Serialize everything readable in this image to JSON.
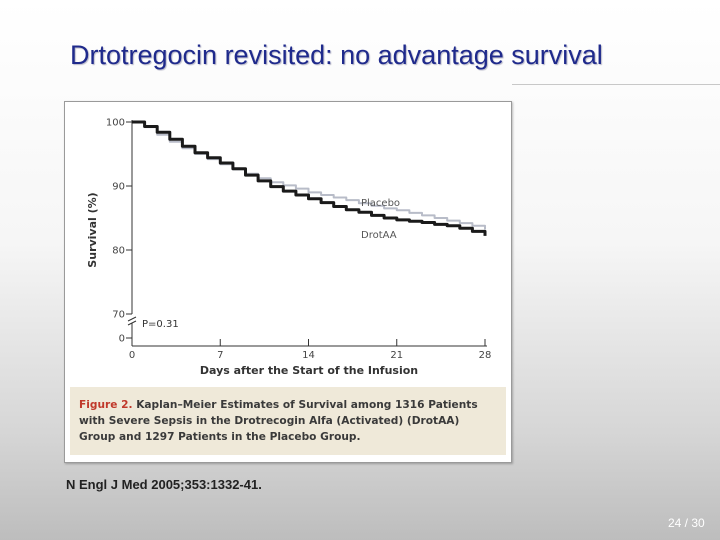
{
  "slide": {
    "title": "Drtotregocin revisited: no advantage survival",
    "citation": "N Engl J Med 2005;353:1332-41.",
    "page_number": "24 / 30"
  },
  "figure": {
    "caption_label": "Figure 2.",
    "caption_text": "Kaplan–Meier Estimates of Survival among 1316 Patients with Severe Sepsis in the Drotrecogin Alfa (Activated) (DrotAA) Group and 1297 Patients in the Placebo Group.",
    "p_value_label": "P=0.31"
  },
  "chart_data": {
    "type": "line",
    "title": "",
    "xlabel": "Days after the Start of the Infusion",
    "ylabel": "Survival (%)",
    "xlim": [
      0,
      28
    ],
    "ylim": [
      70,
      100
    ],
    "axis_break": true,
    "x_ticks": [
      0,
      7,
      14,
      21,
      28
    ],
    "x_tick_labels": [
      "0",
      "7",
      "14",
      "21",
      "28"
    ],
    "y_ticks": [
      0,
      70,
      80,
      90,
      100
    ],
    "y_tick_labels": [
      "0",
      "70",
      "80",
      "90",
      "100"
    ],
    "grid": false,
    "series": [
      {
        "name": "Placebo",
        "color": "#b8bcc8",
        "x": [
          0,
          1,
          2,
          3,
          4,
          5,
          6,
          7,
          8,
          9,
          10,
          11,
          12,
          13,
          14,
          15,
          16,
          17,
          18,
          19,
          20,
          21,
          22,
          23,
          24,
          25,
          26,
          27,
          28
        ],
        "y": [
          100,
          99.2,
          98.0,
          96.9,
          95.9,
          95.0,
          94.2,
          93.4,
          92.6,
          91.9,
          91.2,
          90.6,
          90.1,
          89.6,
          89.0,
          88.6,
          88.2,
          87.8,
          87.3,
          86.9,
          86.5,
          86.2,
          85.8,
          85.4,
          85.0,
          84.6,
          84.2,
          83.8,
          83.2
        ]
      },
      {
        "name": "DrotAA",
        "color": "#1a1a1a",
        "x": [
          0,
          1,
          2,
          3,
          4,
          5,
          6,
          7,
          8,
          9,
          10,
          11,
          12,
          13,
          14,
          15,
          16,
          17,
          18,
          19,
          20,
          21,
          22,
          23,
          24,
          25,
          26,
          27,
          28
        ],
        "y": [
          100,
          99.3,
          98.4,
          97.3,
          96.2,
          95.2,
          94.4,
          93.6,
          92.7,
          91.7,
          90.8,
          89.9,
          89.2,
          88.6,
          88.0,
          87.4,
          86.8,
          86.3,
          85.9,
          85.4,
          85.0,
          84.7,
          84.5,
          84.3,
          84.0,
          83.8,
          83.4,
          82.9,
          82.2
        ]
      }
    ]
  }
}
